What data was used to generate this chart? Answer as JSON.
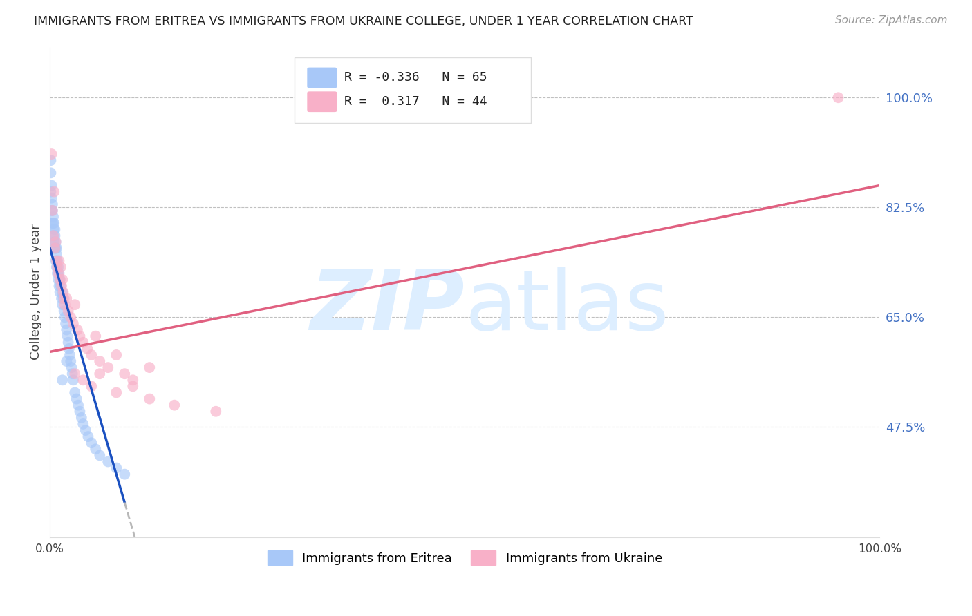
{
  "title": "IMMIGRANTS FROM ERITREA VS IMMIGRANTS FROM UKRAINE COLLEGE, UNDER 1 YEAR CORRELATION CHART",
  "source": "Source: ZipAtlas.com",
  "ylabel": "College, Under 1 year",
  "ytick_labels": [
    "47.5%",
    "65.0%",
    "82.5%",
    "100.0%"
  ],
  "ytick_values": [
    0.475,
    0.65,
    0.825,
    1.0
  ],
  "legend_eritrea": "Immigrants from Eritrea",
  "legend_ukraine": "Immigrants from Ukraine",
  "R_eritrea": -0.336,
  "N_eritrea": 65,
  "R_ukraine": 0.317,
  "N_ukraine": 44,
  "color_eritrea": "#a8c8f8",
  "color_ukraine": "#f8b0c8",
  "color_trend_eritrea": "#1a50c0",
  "color_trend_ukraine": "#e06080",
  "color_trend_dash": "#b8b8b8",
  "background_color": "#ffffff",
  "watermark_color": "#ddeeff",
  "xlim": [
    0.0,
    1.0
  ],
  "ylim": [
    0.3,
    1.08
  ],
  "eritrea_x": [
    0.001,
    0.001,
    0.001,
    0.002,
    0.002,
    0.002,
    0.003,
    0.003,
    0.003,
    0.004,
    0.004,
    0.004,
    0.005,
    0.005,
    0.005,
    0.006,
    0.006,
    0.006,
    0.007,
    0.007,
    0.007,
    0.008,
    0.008,
    0.008,
    0.009,
    0.009,
    0.01,
    0.01,
    0.011,
    0.011,
    0.012,
    0.012,
    0.013,
    0.014,
    0.015,
    0.015,
    0.016,
    0.017,
    0.018,
    0.019,
    0.02,
    0.021,
    0.022,
    0.023,
    0.024,
    0.025,
    0.026,
    0.027,
    0.028,
    0.03,
    0.032,
    0.034,
    0.036,
    0.038,
    0.04,
    0.043,
    0.046,
    0.05,
    0.055,
    0.06,
    0.07,
    0.08,
    0.09,
    0.015,
    0.02
  ],
  "eritrea_y": [
    0.9,
    0.85,
    0.88,
    0.84,
    0.82,
    0.86,
    0.82,
    0.8,
    0.83,
    0.8,
    0.78,
    0.81,
    0.8,
    0.77,
    0.79,
    0.78,
    0.76,
    0.79,
    0.76,
    0.74,
    0.77,
    0.76,
    0.73,
    0.75,
    0.74,
    0.72,
    0.73,
    0.71,
    0.72,
    0.7,
    0.71,
    0.69,
    0.7,
    0.68,
    0.69,
    0.67,
    0.68,
    0.66,
    0.65,
    0.64,
    0.63,
    0.62,
    0.61,
    0.6,
    0.59,
    0.58,
    0.57,
    0.56,
    0.55,
    0.53,
    0.52,
    0.51,
    0.5,
    0.49,
    0.48,
    0.47,
    0.46,
    0.45,
    0.44,
    0.43,
    0.42,
    0.41,
    0.4,
    0.55,
    0.58
  ],
  "ukraine_x": [
    0.002,
    0.003,
    0.004,
    0.005,
    0.006,
    0.007,
    0.008,
    0.009,
    0.01,
    0.011,
    0.012,
    0.013,
    0.014,
    0.015,
    0.016,
    0.017,
    0.018,
    0.02,
    0.022,
    0.025,
    0.028,
    0.03,
    0.033,
    0.036,
    0.04,
    0.045,
    0.05,
    0.055,
    0.06,
    0.07,
    0.08,
    0.09,
    0.1,
    0.12,
    0.03,
    0.04,
    0.05,
    0.06,
    0.08,
    0.1,
    0.12,
    0.15,
    0.2,
    0.95
  ],
  "ukraine_y": [
    0.91,
    0.82,
    0.78,
    0.85,
    0.76,
    0.77,
    0.74,
    0.73,
    0.72,
    0.74,
    0.71,
    0.73,
    0.7,
    0.71,
    0.69,
    0.68,
    0.67,
    0.68,
    0.66,
    0.65,
    0.64,
    0.67,
    0.63,
    0.62,
    0.61,
    0.6,
    0.59,
    0.62,
    0.58,
    0.57,
    0.59,
    0.56,
    0.55,
    0.57,
    0.56,
    0.55,
    0.54,
    0.56,
    0.53,
    0.54,
    0.52,
    0.51,
    0.5,
    1.0
  ],
  "trend_eritrea_x_start": 0.0,
  "trend_eritrea_x_solid_end": 0.09,
  "trend_eritrea_x_dash_end": 0.18,
  "trend_ukraine_x_start": 0.0,
  "trend_ukraine_x_end": 1.0,
  "trend_eritrea_y_at_0": 0.76,
  "trend_eritrea_slope": -4.5,
  "trend_ukraine_y_at_0": 0.595,
  "trend_ukraine_slope": 0.265
}
